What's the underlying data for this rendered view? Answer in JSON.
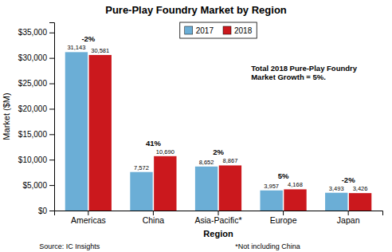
{
  "chart_data": {
    "type": "bar",
    "title": "Pure-Play Foundry Market by Region",
    "categories": [
      "Americas",
      "China",
      "Asia-Pacific*",
      "Europe",
      "Japan"
    ],
    "series": [
      {
        "name": "2017",
        "color": "#6BAED6",
        "values": [
          31143,
          7572,
          8652,
          3957,
          3493
        ],
        "value_labels": [
          "31,143",
          "7,572",
          "8,652",
          "3,957",
          "3,493"
        ]
      },
      {
        "name": "2018",
        "color": "#CB181D",
        "values": [
          30581,
          10690,
          8867,
          4168,
          3426
        ],
        "value_labels": [
          "30,581",
          "10,690",
          "8,867",
          "4,168",
          "3,426"
        ]
      }
    ],
    "group_labels": [
      "-2%",
      "41%",
      "2%",
      "5%",
      "-2%"
    ],
    "xlabel": "Region",
    "ylabel": "Market ($M)",
    "ylim": [
      0,
      37000
    ],
    "yticks": [
      {
        "value": 0,
        "label": "$0"
      },
      {
        "value": 5000,
        "label": "$5,000"
      },
      {
        "value": 10000,
        "label": "$10,000"
      },
      {
        "value": 15000,
        "label": "$15,000"
      },
      {
        "value": 20000,
        "label": "$20,000"
      },
      {
        "value": 25000,
        "label": "$25,000"
      },
      {
        "value": 30000,
        "label": "$30,000"
      },
      {
        "value": 35000,
        "label": "$35,000"
      }
    ],
    "annotation": "Total 2018 Pure-Play Foundry\nMarket Growth = 5%.",
    "source": "Source: IC Insights",
    "footnote": "*Not including China",
    "grid": false,
    "legend": "top",
    "data_labels": true
  }
}
